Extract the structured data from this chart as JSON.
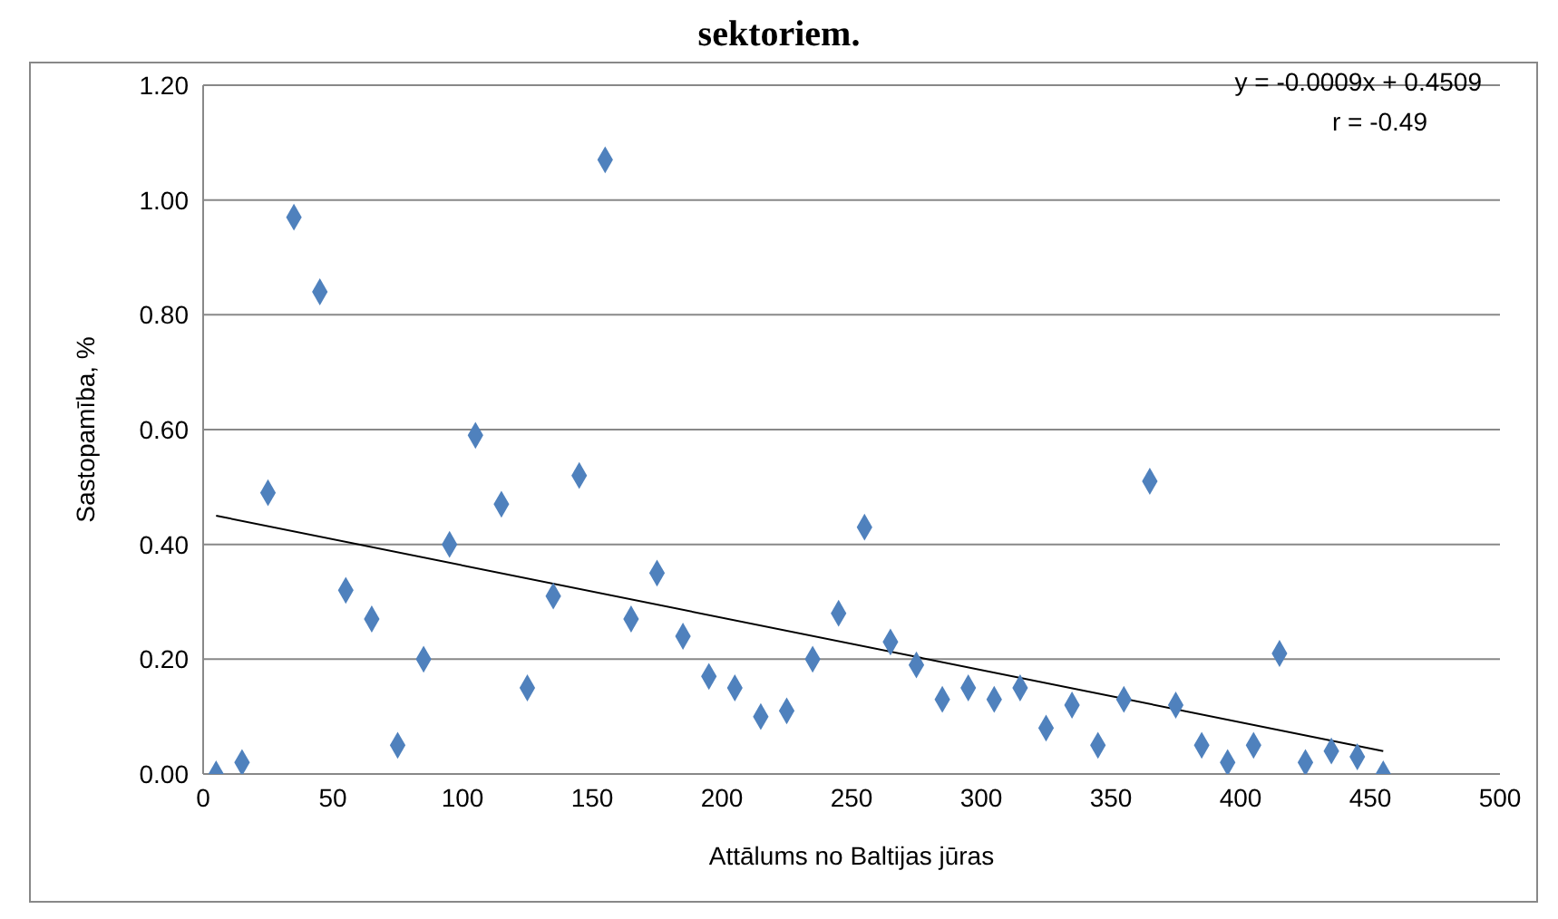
{
  "chart_data": {
    "type": "scatter",
    "title": "sektoriem.",
    "xlabel": "Attālums no Baltijas jūras",
    "ylabel": "Sastopamība, %",
    "x": [
      5,
      15,
      25,
      35,
      45,
      55,
      65,
      75,
      85,
      95,
      105,
      115,
      125,
      135,
      145,
      155,
      165,
      175,
      185,
      195,
      205,
      215,
      225,
      235,
      245,
      255,
      265,
      275,
      285,
      295,
      305,
      315,
      325,
      335,
      345,
      355,
      365,
      375,
      385,
      395,
      405,
      415,
      425,
      435,
      445,
      455
    ],
    "series": [
      {
        "color": "#4f81bd",
        "marker": "diamond",
        "values": [
          0.0,
          0.02,
          0.49,
          0.97,
          0.84,
          0.32,
          0.27,
          0.05,
          0.2,
          0.4,
          0.59,
          0.47,
          0.15,
          0.31,
          0.52,
          1.07,
          0.27,
          0.35,
          0.24,
          0.17,
          0.15,
          0.1,
          0.11,
          0.2,
          0.28,
          0.43,
          0.23,
          0.19,
          0.13,
          0.15,
          0.13,
          0.15,
          0.08,
          0.12,
          0.05,
          0.13,
          0.51,
          0.12,
          0.05,
          0.02,
          0.05,
          0.21,
          0.02,
          0.04,
          0.03,
          0.0
        ]
      },
      {
        "type": "line",
        "color": "#000000",
        "x": [
          5,
          455
        ],
        "values": [
          0.45,
          0.04
        ]
      }
    ],
    "annotations": [
      "y = -0.0009x + 0.4509",
      "r = -0.49"
    ],
    "xlim": [
      0,
      500
    ],
    "xticks": [
      0,
      50,
      100,
      150,
      200,
      250,
      300,
      350,
      400,
      450,
      500
    ],
    "ylim": [
      0,
      1.2
    ],
    "yticks": [
      {
        "value": 0,
        "label": "0.00"
      },
      {
        "value": 0.2,
        "label": "0.20"
      },
      {
        "value": 0.4,
        "label": "0.40"
      },
      {
        "value": 0.6,
        "label": "0.60"
      },
      {
        "value": 0.8,
        "label": "0.80"
      },
      {
        "value": 1,
        "label": "1.00"
      },
      {
        "value": 1.2,
        "label": "1.20"
      }
    ],
    "grid": "y"
  }
}
